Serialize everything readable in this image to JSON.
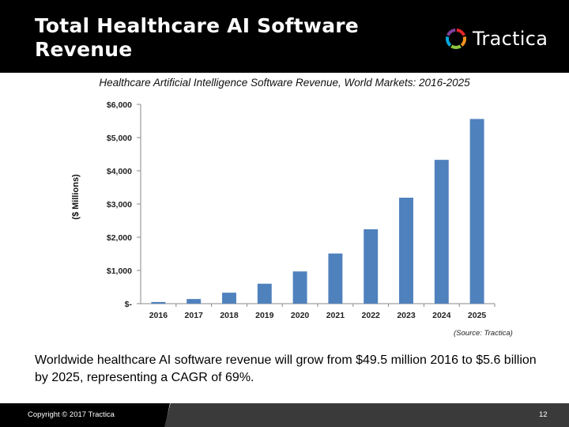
{
  "slide": {
    "title": "Total Healthcare AI Software Revenue",
    "logo_text": "Tractica",
    "summary": "Worldwide healthcare AI software revenue will grow from $49.5 million 2016 to $5.6 billion by 2025, representing a CAGR of 69%.",
    "source": "(Source: Tractica)",
    "copyright": "Copyright © 2017 Tractica",
    "page_number": "12"
  },
  "colors": {
    "header_bg": "#000000",
    "bar": "#4f81bd",
    "logo_ring": [
      "#e4252b",
      "#f7941d",
      "#8dc63f",
      "#00a9e0",
      "#7f3f98"
    ]
  },
  "chart_data": {
    "type": "bar",
    "title": "Healthcare Artificial Intelligence Software Revenue, World Markets: 2016-2025",
    "xlabel": "",
    "ylabel": "($ Millions)",
    "categories": [
      "2016",
      "2017",
      "2018",
      "2019",
      "2020",
      "2021",
      "2022",
      "2023",
      "2024",
      "2025"
    ],
    "values": [
      50,
      140,
      330,
      600,
      970,
      1510,
      2240,
      3190,
      4330,
      5560
    ],
    "ylim": [
      0,
      6000
    ],
    "yticks": [
      0,
      1000,
      2000,
      3000,
      4000,
      5000,
      6000
    ],
    "ytick_labels": [
      "$-",
      "$1,000",
      "$2,000",
      "$3,000",
      "$4,000",
      "$5,000",
      "$6,000"
    ],
    "grid": false,
    "legend": "none"
  }
}
